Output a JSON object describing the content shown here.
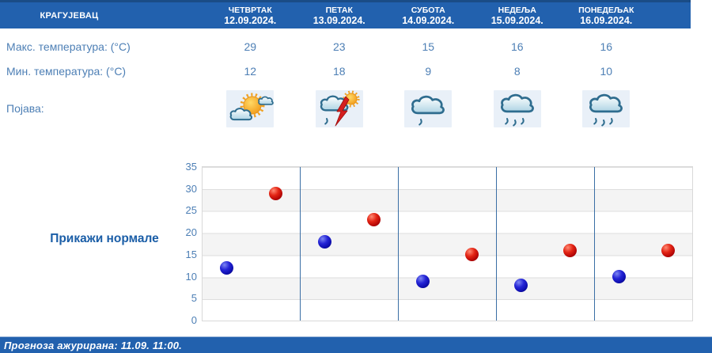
{
  "header": {
    "city": "КРАГУЈЕВАЦ",
    "days": [
      {
        "name": "ЧЕТВРТАК",
        "date": "12.09.2024."
      },
      {
        "name": "ПЕТАК",
        "date": "13.09.2024."
      },
      {
        "name": "СУБОТА",
        "date": "14.09.2024."
      },
      {
        "name": "НЕДЕЉА",
        "date": "15.09.2024."
      },
      {
        "name": "ПОНЕДЕЉАК",
        "date": "16.09.2024."
      }
    ]
  },
  "rows": {
    "max_label": "Макс. температура: (°C)",
    "min_label": "Мин. температура: (°C)",
    "phenomena_label": "Појава:",
    "max_temps": [
      "29",
      "23",
      "15",
      "16",
      "16"
    ],
    "min_temps": [
      "12",
      "18",
      "9",
      "8",
      "10"
    ],
    "phenomena": [
      "partly-cloudy",
      "thunderstorm-rain-sun",
      "light-rain",
      "rain",
      "rain"
    ]
  },
  "controls": {
    "show_normals_label": "Прикажи нормале"
  },
  "footer": {
    "updated_text": "Прогноза ажурирана:  11.09. 11:00."
  },
  "colors": {
    "header_bg": "#2261ae",
    "label_text": "#4d7fb5",
    "max_dot": "#cc1010",
    "min_dot": "#1a1acc",
    "column_separator": "#3a6ea5"
  },
  "chart_data": {
    "type": "scatter",
    "categories": [
      "12.09.2024.",
      "13.09.2024.",
      "14.09.2024.",
      "15.09.2024.",
      "16.09.2024."
    ],
    "series": [
      {
        "name": "Макс. температура (°C)",
        "key": "max",
        "x_frac": 0.75,
        "values": [
          29,
          23,
          15,
          16,
          16
        ]
      },
      {
        "name": "Мин. температура (°C)",
        "key": "min",
        "x_frac": 0.25,
        "values": [
          12,
          18,
          9,
          8,
          10
        ]
      }
    ],
    "ylim": [
      0,
      35
    ],
    "yticks": [
      0,
      5,
      10,
      15,
      20,
      25,
      30,
      35
    ],
    "grid": true,
    "legend": "none",
    "band_fill": "alternating-horizontal"
  }
}
